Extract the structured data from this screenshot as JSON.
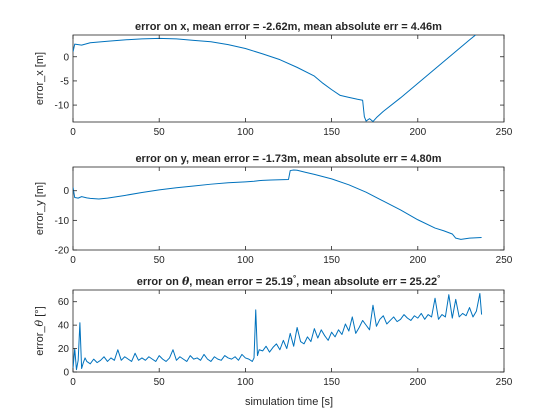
{
  "figure": {
    "xlabel": "simulation time [s]"
  },
  "chart_data": [
    {
      "type": "line",
      "title": "error on x, mean error = -2.62m, mean absolute err = 4.46m",
      "ylabel": "error_x [m]",
      "xlim": [
        0,
        250
      ],
      "ylim": [
        -13.5,
        4.5
      ],
      "xticks": [
        "0",
        "50",
        "100",
        "150",
        "200",
        "250"
      ],
      "yticks": [
        {
          "v": 0,
          "label": "0"
        },
        {
          "v": -5,
          "label": "-5"
        },
        {
          "v": -10,
          "label": "-10"
        }
      ],
      "color": "#0072BD",
      "series": [
        {
          "x": [
            0,
            1,
            5,
            10,
            20,
            30,
            40,
            50,
            60,
            70,
            80,
            90,
            100,
            110,
            120,
            130,
            140,
            145,
            150,
            155,
            160,
            165,
            168,
            169,
            170,
            172,
            174,
            176,
            180,
            190,
            200,
            210,
            220,
            230,
            237
          ],
          "y": [
            1.0,
            2.6,
            2.4,
            2.9,
            3.2,
            3.5,
            3.7,
            3.8,
            3.7,
            3.4,
            3.1,
            2.5,
            1.7,
            0.6,
            -0.6,
            -2.2,
            -4.0,
            -5.5,
            -6.8,
            -8.0,
            -8.4,
            -8.8,
            -9.0,
            -12.4,
            -13.3,
            -12.8,
            -13.4,
            -12.6,
            -11.3,
            -8.5,
            -5.5,
            -2.5,
            0.5,
            3.5,
            5.5
          ]
        }
      ]
    },
    {
      "type": "line",
      "title": "error on y, mean error = -1.73m, mean absolute err = 4.80m",
      "ylabel": "error_y [m]",
      "xlim": [
        0,
        250
      ],
      "ylim": [
        -20,
        8
      ],
      "xticks": [
        "0",
        "50",
        "100",
        "150",
        "200",
        "250"
      ],
      "yticks": [
        {
          "v": 0,
          "label": "0"
        },
        {
          "v": -10,
          "label": "-10"
        },
        {
          "v": -20,
          "label": "-20"
        }
      ],
      "color": "#0072BD",
      "series": [
        {
          "x": [
            0,
            1,
            3,
            5,
            8,
            10,
            15,
            20,
            30,
            40,
            50,
            60,
            70,
            80,
            90,
            100,
            105,
            108,
            110,
            115,
            120,
            125,
            126,
            128,
            130,
            135,
            140,
            150,
            160,
            170,
            180,
            190,
            200,
            210,
            215,
            220,
            222,
            225,
            230,
            237
          ],
          "y": [
            1.2,
            -2.3,
            -2.5,
            -2.0,
            -2.4,
            -2.6,
            -2.8,
            -2.5,
            -1.6,
            -0.6,
            0.3,
            1.0,
            1.6,
            2.2,
            2.7,
            3.0,
            3.2,
            3.4,
            3.5,
            3.6,
            3.7,
            3.8,
            6.8,
            7.0,
            6.9,
            6.2,
            5.5,
            4.0,
            2.0,
            -0.5,
            -3.5,
            -6.5,
            -9.8,
            -12.6,
            -13.5,
            -14.6,
            -16.0,
            -16.4,
            -16.0,
            -15.8
          ]
        }
      ]
    },
    {
      "type": "line",
      "title_parts": [
        "error on ",
        "θ",
        ", mean error = 25.19",
        "°",
        ", mean absolute err = 25.22",
        "°"
      ],
      "ylabel_parts": [
        "error_",
        "θ",
        " [°]"
      ],
      "xlim": [
        0,
        250
      ],
      "ylim": [
        0,
        70
      ],
      "xticks": [
        "0",
        "50",
        "100",
        "150",
        "200",
        "250"
      ],
      "yticks": [
        {
          "v": 0,
          "label": "0"
        },
        {
          "v": 20,
          "label": "20"
        },
        {
          "v": 40,
          "label": "40"
        },
        {
          "v": 60,
          "label": "60"
        }
      ],
      "color": "#0072BD",
      "series": [
        {
          "x": [
            0,
            1,
            2,
            3,
            4,
            5,
            6,
            7,
            8,
            10,
            12,
            14,
            16,
            18,
            20,
            22,
            24,
            26,
            28,
            30,
            32,
            34,
            36,
            38,
            40,
            42,
            44,
            46,
            48,
            50,
            52,
            54,
            56,
            58,
            60,
            62,
            64,
            66,
            68,
            70,
            72,
            74,
            76,
            78,
            80,
            82,
            84,
            86,
            88,
            90,
            92,
            94,
            96,
            98,
            100,
            102,
            104,
            105,
            106,
            107,
            108,
            110,
            112,
            114,
            116,
            118,
            120,
            122,
            124,
            126,
            128,
            130,
            132,
            134,
            136,
            138,
            140,
            142,
            144,
            146,
            148,
            150,
            152,
            154,
            156,
            158,
            160,
            162,
            164,
            166,
            168,
            170,
            172,
            174,
            176,
            178,
            180,
            182,
            184,
            186,
            188,
            190,
            192,
            194,
            196,
            198,
            200,
            202,
            204,
            206,
            208,
            210,
            212,
            214,
            216,
            218,
            220,
            222,
            224,
            226,
            228,
            230,
            232,
            234,
            236,
            237
          ],
          "y": [
            3,
            20,
            2,
            10,
            42,
            3,
            8,
            12,
            9,
            7,
            11,
            8,
            10,
            13,
            9,
            12,
            10,
            19,
            10,
            13,
            11,
            9,
            16,
            10,
            12,
            10,
            13,
            11,
            9,
            14,
            11,
            9,
            12,
            19,
            10,
            13,
            11,
            9,
            14,
            11,
            12,
            10,
            15,
            11,
            9,
            13,
            11,
            10,
            14,
            12,
            11,
            13,
            10,
            15,
            12,
            11,
            9,
            12,
            53,
            14,
            19,
            18,
            22,
            17,
            21,
            24,
            19,
            27,
            20,
            33,
            22,
            38,
            26,
            24,
            30,
            26,
            37,
            29,
            36,
            31,
            27,
            34,
            30,
            36,
            32,
            41,
            35,
            47,
            33,
            38,
            44,
            40,
            36,
            57,
            39,
            45,
            48,
            41,
            44,
            47,
            43,
            45,
            49,
            46,
            44,
            48,
            46,
            50,
            45,
            49,
            47,
            63,
            45,
            49,
            47,
            66,
            46,
            62,
            47,
            50,
            48,
            55,
            47,
            52,
            67,
            49
          ]
        }
      ]
    }
  ]
}
